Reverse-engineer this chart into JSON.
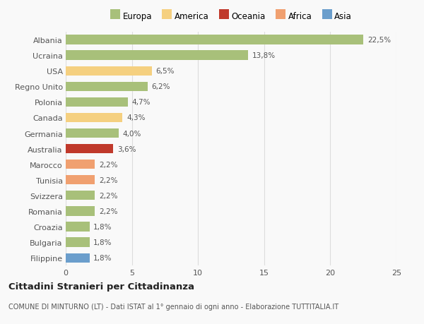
{
  "countries": [
    "Albania",
    "Ucraina",
    "USA",
    "Regno Unito",
    "Polonia",
    "Canada",
    "Germania",
    "Australia",
    "Marocco",
    "Tunisia",
    "Svizzera",
    "Romania",
    "Croazia",
    "Bulgaria",
    "Filippine"
  ],
  "values": [
    22.5,
    13.8,
    6.5,
    6.2,
    4.7,
    4.3,
    4.0,
    3.6,
    2.2,
    2.2,
    2.2,
    2.2,
    1.8,
    1.8,
    1.8
  ],
  "labels": [
    "22,5%",
    "13,8%",
    "6,5%",
    "6,2%",
    "4,7%",
    "4,3%",
    "4,0%",
    "3,6%",
    "2,2%",
    "2,2%",
    "2,2%",
    "2,2%",
    "1,8%",
    "1,8%",
    "1,8%"
  ],
  "colors": [
    "#a8c07a",
    "#a8c07a",
    "#f5d080",
    "#a8c07a",
    "#a8c07a",
    "#f5d080",
    "#a8c07a",
    "#c0392b",
    "#f0a070",
    "#f0a070",
    "#a8c07a",
    "#a8c07a",
    "#a8c07a",
    "#a8c07a",
    "#6b9ecc"
  ],
  "categories": [
    "Europa",
    "America",
    "Oceania",
    "Africa",
    "Asia"
  ],
  "legend_colors": [
    "#a8c07a",
    "#f5d080",
    "#c0392b",
    "#f0a070",
    "#6b9ecc"
  ],
  "title": "Cittadini Stranieri per Cittadinanza",
  "subtitle": "COMUNE DI MINTURNO (LT) - Dati ISTAT al 1° gennaio di ogni anno - Elaborazione TUTTITALIA.IT",
  "xlim": [
    0,
    25
  ],
  "xticks": [
    0,
    5,
    10,
    15,
    20,
    25
  ],
  "bg_color": "#f9f9f9",
  "grid_color": "#dddddd"
}
